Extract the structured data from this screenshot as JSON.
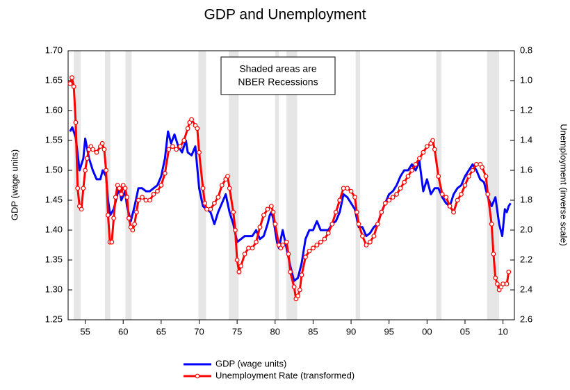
{
  "chart_data": {
    "type": "line",
    "title": "GDP and Unemployment",
    "ylabel": "GDP (wage units)",
    "y2label": "Unemployment (inverse scale)",
    "annotation": [
      "Shaded areas are",
      "NBER Recessions"
    ],
    "legend": "bottom",
    "xlim": [
      1952.75,
      2011.5
    ],
    "xticks": [
      {
        "value": 1955,
        "label": "55"
      },
      {
        "value": 1960,
        "label": "60"
      },
      {
        "value": 1965,
        "label": "65"
      },
      {
        "value": 1970,
        "label": "70"
      },
      {
        "value": 1975,
        "label": "75"
      },
      {
        "value": 1980,
        "label": "80"
      },
      {
        "value": 1985,
        "label": "85"
      },
      {
        "value": 1990,
        "label": "90"
      },
      {
        "value": 1995,
        "label": "95"
      },
      {
        "value": 2000,
        "label": "00"
      },
      {
        "value": 2005,
        "label": "05"
      },
      {
        "value": 2010,
        "label": "10"
      }
    ],
    "ylim": [
      1.25,
      1.7
    ],
    "yticks": [
      1.25,
      {
        "value": 1.3,
        "label": "1.30"
      },
      1.35,
      {
        "value": 1.4,
        "label": "1.40"
      },
      1.45,
      {
        "value": 1.5,
        "label": "1.50"
      },
      1.55,
      {
        "value": 1.6,
        "label": "1.60"
      },
      1.65,
      {
        "value": 1.7,
        "label": "1.70"
      }
    ],
    "y2lim": [
      2.6,
      0.8
    ],
    "y2ticks": [
      0.8,
      {
        "value": 1,
        "label": "1.0"
      },
      1.2,
      1.4,
      1.6,
      1.8,
      {
        "value": 2,
        "label": "2.0"
      },
      2.2,
      2.4,
      2.6
    ],
    "recessions": [
      [
        1953.5,
        1954.4
      ],
      [
        1957.6,
        1958.3
      ],
      [
        1960.3,
        1961.1
      ],
      [
        1969.9,
        1970.9
      ],
      [
        1973.9,
        1975.2
      ],
      [
        1980.0,
        1980.5
      ],
      [
        1981.5,
        1982.9
      ],
      [
        1990.6,
        1991.2
      ],
      [
        2001.2,
        2001.9
      ],
      [
        2007.9,
        2009.5
      ]
    ],
    "recession_color": "#e6e6e6",
    "series": [
      {
        "name": "GDP (wage units)",
        "color": "#0000ff",
        "axis": "y",
        "markers": false,
        "x": [
          1953.0,
          1953.3,
          1953.75,
          1954.25,
          1954.75,
          1955.0,
          1955.5,
          1956.0,
          1956.5,
          1957.0,
          1957.3,
          1957.75,
          1958.0,
          1958.3,
          1958.75,
          1959.25,
          1959.5,
          1959.75,
          1960.25,
          1960.5,
          1961.0,
          1961.5,
          1962.0,
          1962.5,
          1963.0,
          1963.5,
          1964.0,
          1964.5,
          1965.0,
          1965.5,
          1965.9,
          1966.3,
          1966.75,
          1967.25,
          1967.75,
          1968.25,
          1968.5,
          1969.0,
          1969.5,
          1970.0,
          1970.5,
          1971.0,
          1971.5,
          1972.0,
          1972.5,
          1973.0,
          1973.5,
          1974.0,
          1974.5,
          1975.0,
          1975.5,
          1976.0,
          1976.5,
          1977.0,
          1977.5,
          1978.0,
          1978.5,
          1979.0,
          1979.3,
          1979.5,
          1979.75,
          1980.0,
          1980.25,
          1980.5,
          1981.0,
          1981.5,
          1982.0,
          1982.5,
          1983.0,
          1983.5,
          1984.0,
          1984.5,
          1985.0,
          1985.5,
          1986.0,
          1986.5,
          1987.0,
          1987.5,
          1988.0,
          1988.5,
          1989.0,
          1989.5,
          1990.0,
          1990.5,
          1991.0,
          1991.5,
          1992.0,
          1992.5,
          1993.0,
          1993.5,
          1994.0,
          1994.5,
          1995.0,
          1995.5,
          1996.0,
          1996.5,
          1997.0,
          1997.5,
          1998.0,
          1998.5,
          1999.0,
          1999.5,
          2000.0,
          2000.5,
          2001.0,
          2001.5,
          2002.0,
          2002.5,
          2003.0,
          2003.5,
          2004.0,
          2004.5,
          2005.0,
          2005.5,
          2006.0,
          2006.5,
          2007.0,
          2007.5,
          2008.0,
          2008.5,
          2009.0,
          2009.5,
          2009.9,
          2010.25,
          2010.5,
          2010.75,
          2011.0
        ],
        "values": [
          1.565,
          1.572,
          1.555,
          1.5,
          1.52,
          1.553,
          1.52,
          1.5,
          1.485,
          1.485,
          1.5,
          1.49,
          1.45,
          1.425,
          1.435,
          1.46,
          1.47,
          1.45,
          1.465,
          1.44,
          1.415,
          1.44,
          1.47,
          1.47,
          1.465,
          1.465,
          1.47,
          1.475,
          1.49,
          1.52,
          1.565,
          1.545,
          1.56,
          1.54,
          1.53,
          1.55,
          1.53,
          1.525,
          1.54,
          1.47,
          1.44,
          1.435,
          1.43,
          1.41,
          1.43,
          1.445,
          1.46,
          1.43,
          1.41,
          1.38,
          1.385,
          1.39,
          1.39,
          1.39,
          1.4,
          1.385,
          1.39,
          1.41,
          1.425,
          1.43,
          1.42,
          1.4,
          1.38,
          1.37,
          1.4,
          1.37,
          1.34,
          1.315,
          1.32,
          1.345,
          1.385,
          1.4,
          1.4,
          1.415,
          1.4,
          1.4,
          1.4,
          1.41,
          1.415,
          1.43,
          1.46,
          1.455,
          1.445,
          1.435,
          1.405,
          1.405,
          1.39,
          1.395,
          1.405,
          1.41,
          1.43,
          1.445,
          1.46,
          1.465,
          1.475,
          1.49,
          1.5,
          1.5,
          1.51,
          1.5,
          1.515,
          1.465,
          1.485,
          1.46,
          1.47,
          1.47,
          1.455,
          1.445,
          1.44,
          1.46,
          1.47,
          1.475,
          1.49,
          1.5,
          1.51,
          1.5,
          1.485,
          1.48,
          1.455,
          1.44,
          1.455,
          1.41,
          1.39,
          1.435,
          1.43,
          1.44,
          1.445
        ]
      },
      {
        "name": "Unemployment Rate (transformed)",
        "color": "#ff0000",
        "axis": "y2",
        "markers": true,
        "x": [
          1953.0,
          1953.25,
          1953.5,
          1953.75,
          1954.0,
          1954.25,
          1954.5,
          1954.75,
          1955.0,
          1955.25,
          1955.5,
          1955.75,
          1956.0,
          1956.5,
          1957.0,
          1957.25,
          1957.5,
          1957.75,
          1958.0,
          1958.25,
          1958.5,
          1958.75,
          1959.0,
          1959.25,
          1959.5,
          1959.75,
          1960.0,
          1960.25,
          1960.5,
          1960.75,
          1961.0,
          1961.25,
          1961.5,
          1961.75,
          1962.0,
          1962.5,
          1963.0,
          1963.5,
          1964.0,
          1964.5,
          1965.0,
          1965.5,
          1966.0,
          1966.5,
          1967.0,
          1967.5,
          1968.0,
          1968.5,
          1968.75,
          1969.0,
          1969.5,
          1969.75,
          1970.0,
          1970.5,
          1970.75,
          1971.0,
          1971.5,
          1972.0,
          1972.5,
          1973.0,
          1973.5,
          1973.75,
          1974.0,
          1974.5,
          1974.75,
          1975.0,
          1975.25,
          1975.5,
          1976.0,
          1976.5,
          1977.0,
          1977.5,
          1978.0,
          1978.5,
          1979.0,
          1979.5,
          1979.75,
          1980.0,
          1980.5,
          1980.75,
          1981.0,
          1981.5,
          1981.75,
          1982.0,
          1982.5,
          1982.75,
          1983.0,
          1983.25,
          1983.5,
          1984.0,
          1984.5,
          1985.0,
          1985.5,
          1986.0,
          1986.5,
          1987.0,
          1987.5,
          1988.0,
          1988.5,
          1989.0,
          1989.5,
          1990.0,
          1990.5,
          1990.75,
          1991.0,
          1991.5,
          1992.0,
          1992.5,
          1993.0,
          1993.5,
          1994.0,
          1994.5,
          1995.0,
          1995.5,
          1996.0,
          1996.5,
          1997.0,
          1997.5,
          1998.0,
          1998.5,
          1999.0,
          1999.5,
          2000.0,
          2000.5,
          2000.75,
          2001.0,
          2001.5,
          2002.0,
          2002.5,
          2003.0,
          2003.5,
          2004.0,
          2004.5,
          2005.0,
          2005.5,
          2006.0,
          2006.5,
          2007.0,
          2007.25,
          2007.75,
          2008.0,
          2008.5,
          2008.75,
          2009.0,
          2009.25,
          2009.5,
          2009.75,
          2010.0,
          2010.5,
          2010.75
        ],
        "values": [
          1.02,
          0.98,
          1.04,
          1.28,
          1.72,
          1.84,
          1.86,
          1.72,
          1.6,
          1.52,
          1.46,
          1.44,
          1.46,
          1.48,
          1.44,
          1.42,
          1.46,
          1.6,
          1.9,
          2.08,
          2.08,
          1.92,
          1.78,
          1.7,
          1.72,
          1.76,
          1.7,
          1.72,
          1.78,
          1.92,
          1.98,
          2.0,
          1.96,
          1.88,
          1.8,
          1.78,
          1.8,
          1.8,
          1.76,
          1.74,
          1.7,
          1.62,
          1.46,
          1.44,
          1.46,
          1.44,
          1.4,
          1.32,
          1.28,
          1.26,
          1.3,
          1.32,
          1.48,
          1.72,
          1.82,
          1.86,
          1.86,
          1.82,
          1.78,
          1.7,
          1.66,
          1.64,
          1.72,
          1.88,
          2.0,
          2.2,
          2.28,
          2.24,
          2.16,
          2.12,
          2.12,
          2.08,
          1.98,
          1.9,
          1.86,
          1.84,
          1.88,
          1.96,
          2.1,
          2.12,
          2.1,
          2.08,
          2.16,
          2.28,
          2.38,
          2.46,
          2.44,
          2.4,
          2.3,
          2.18,
          2.14,
          2.12,
          2.1,
          2.08,
          2.06,
          2.02,
          1.96,
          1.88,
          1.8,
          1.72,
          1.72,
          1.74,
          1.78,
          1.88,
          1.96,
          2.04,
          2.1,
          2.08,
          2.04,
          1.96,
          1.88,
          1.82,
          1.8,
          1.78,
          1.76,
          1.72,
          1.68,
          1.64,
          1.6,
          1.56,
          1.52,
          1.48,
          1.44,
          1.42,
          1.4,
          1.46,
          1.64,
          1.76,
          1.78,
          1.84,
          1.88,
          1.8,
          1.76,
          1.7,
          1.64,
          1.6,
          1.56,
          1.56,
          1.58,
          1.64,
          1.76,
          1.96,
          2.16,
          2.32,
          2.36,
          2.4,
          2.38,
          2.36,
          2.36,
          2.28
        ]
      }
    ]
  }
}
